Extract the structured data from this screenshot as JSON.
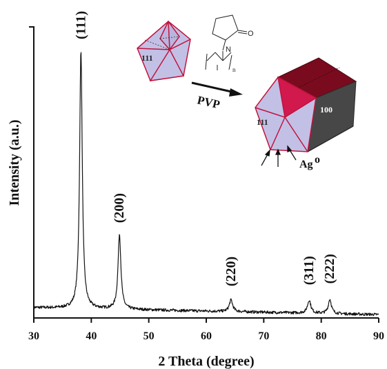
{
  "chart_data": {
    "type": "line",
    "xlabel": "2 Theta (degree)",
    "ylabel": "Intensity (a.u.)",
    "xlim": [
      30,
      90
    ],
    "x_ticks": [
      "30",
      "40",
      "50",
      "60",
      "70",
      "80",
      "90"
    ],
    "grid": false,
    "legend": "none",
    "line_color": "#111111",
    "baseline": 4,
    "peaks": [
      {
        "label": "(111)",
        "x": 38.2,
        "intensity": 100,
        "width": 0.55
      },
      {
        "label": "(200)",
        "x": 44.9,
        "intensity": 29,
        "width": 0.6
      },
      {
        "label": "(220)",
        "x": 64.3,
        "intensity": 4.5,
        "width": 0.7
      },
      {
        "label": "(311)",
        "x": 77.9,
        "intensity": 5,
        "width": 0.7
      },
      {
        "label": "(222)",
        "x": 81.5,
        "intensity": 5.5,
        "width": 0.65
      }
    ]
  },
  "schematic": {
    "face_label_left": "111",
    "face_label_right_front": "111",
    "face_label_side": "100",
    "reagent_label": "PVP",
    "polymer_subscript": "n",
    "atom_label": "Ag",
    "atom_superscript": "o",
    "colors": {
      "face_light": "#c3c0e6",
      "face_red": "#d1194e",
      "face_dark_red": "#8a0d21",
      "face_dark": "#4a4a4a",
      "edge_red": "#c0143c"
    }
  }
}
